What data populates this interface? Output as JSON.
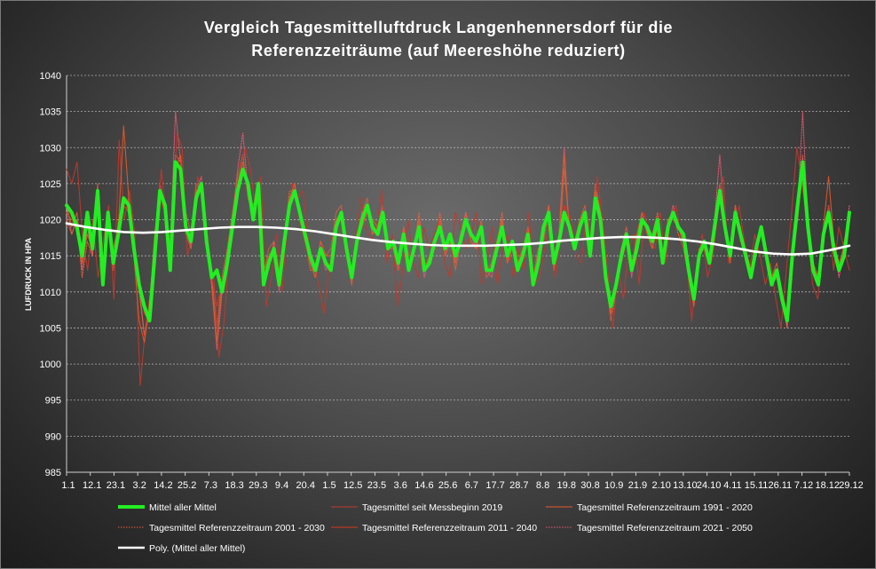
{
  "chart_data": {
    "type": "line",
    "title_lines": [
      "Vergleich Tagesmittelluftdruck Langenhennersdorf für die",
      "Referenzzeiträume (auf Meereshöhe reduziert)"
    ],
    "ylabel": "LUFDRUCK IN HPA",
    "xlabel": "",
    "ylim": [
      985,
      1040
    ],
    "y_ticks": [
      985,
      990,
      995,
      1000,
      1005,
      1010,
      1015,
      1020,
      1025,
      1030,
      1035,
      1040
    ],
    "x_tick_labels": [
      "1.1",
      "12.1",
      "23.1",
      "3.2",
      "14.2",
      "25.2",
      "7.3",
      "18.3",
      "29.3",
      "9.4",
      "20.4",
      "1.5",
      "12.5",
      "23.5",
      "3.6",
      "14.6",
      "25.6",
      "6.7",
      "17.7",
      "28.7",
      "8.8",
      "19.8",
      "30.8",
      "10.9",
      "21.9",
      "2.10",
      "13.10",
      "24.10",
      "4.11",
      "15.11",
      "26.11",
      "7.12",
      "18.12",
      "29.12"
    ],
    "grid": true,
    "legend_placement": "bottom",
    "series": [
      {
        "name": "Mittel aller Mittel",
        "color": "#22ee22",
        "style": "solid-thick",
        "values": [
          1022,
          1021,
          1019,
          1015,
          1021,
          1016,
          1024,
          1011,
          1021,
          1014,
          1018,
          1023,
          1022,
          1016,
          1011,
          1008,
          1006,
          1015,
          1024,
          1022,
          1013,
          1028,
          1027,
          1019,
          1017,
          1023,
          1025,
          1017,
          1012,
          1013,
          1010,
          1014,
          1019,
          1024,
          1027,
          1025,
          1020,
          1025,
          1011,
          1014,
          1016,
          1011,
          1017,
          1022,
          1024,
          1021,
          1018,
          1015,
          1013,
          1016,
          1014,
          1013,
          1019,
          1021,
          1016,
          1012,
          1017,
          1020,
          1022,
          1019,
          1018,
          1021,
          1016,
          1017,
          1014,
          1018,
          1013,
          1016,
          1019,
          1013,
          1014,
          1017,
          1019,
          1016,
          1018,
          1015,
          1017,
          1020,
          1018,
          1017,
          1019,
          1013,
          1013,
          1016,
          1019,
          1015,
          1017,
          1013,
          1015,
          1018,
          1011,
          1014,
          1019,
          1021,
          1014,
          1017,
          1021,
          1019,
          1016,
          1019,
          1021,
          1015,
          1023,
          1020,
          1012,
          1008,
          1011,
          1015,
          1018,
          1013,
          1016,
          1020,
          1019,
          1017,
          1020,
          1014,
          1019,
          1021,
          1019,
          1018,
          1013,
          1009,
          1015,
          1017,
          1014,
          1019,
          1024,
          1019,
          1015,
          1021,
          1018,
          1015,
          1012,
          1016,
          1019,
          1015,
          1011,
          1013,
          1009,
          1006,
          1015,
          1022,
          1028,
          1019,
          1013,
          1011,
          1018,
          1021,
          1016,
          1013,
          1015,
          1021
        ]
      },
      {
        "name": "Tagesmittel seit Messbeginn 2019",
        "color": "#c0392b",
        "style": "solid-thin",
        "values": [
          1027,
          1025,
          1028,
          1018,
          1013,
          1020,
          1012,
          1017,
          1022,
          1009,
          1031,
          1020,
          1024,
          1018,
          997,
          1005,
          1010,
          1016,
          1027,
          1020,
          1016,
          1032,
          1030,
          1015,
          1018,
          1026,
          1022,
          1015,
          1012,
          1001,
          1006,
          1016,
          1021,
          1027,
          1030,
          1027,
          1021,
          1026,
          1008,
          1012,
          1018,
          1010,
          1019,
          1025,
          1023,
          1024,
          1017,
          1014,
          1011,
          1007,
          1014,
          1016,
          1021,
          1016,
          1012,
          1017,
          1023,
          1019,
          1017,
          1019,
          1024,
          1014,
          1018,
          1008,
          1013,
          1020,
          1014,
          1012,
          1019,
          1016,
          1018,
          1020,
          1014,
          1012,
          1021,
          1019,
          1016,
          1018,
          1021,
          1011,
          1014,
          1019,
          1011,
          1016,
          1018,
          1012,
          1016,
          1013,
          1021,
          1011,
          1012,
          1016,
          1020,
          1012,
          1018,
          1022,
          1020,
          1015,
          1014,
          1021,
          1017,
          1026,
          1020,
          1013,
          1005,
          1013,
          1009,
          1016,
          1018,
          1011,
          1021,
          1017,
          1016,
          1021,
          1014,
          1020,
          1022,
          1017,
          1015,
          1006,
          1014,
          1018,
          1012,
          1015,
          1021,
          1026,
          1014,
          1018,
          1022,
          1017,
          1013,
          1018,
          1015,
          1011,
          1014,
          1009,
          1005,
          1013,
          1021,
          1030,
          1025,
          1019,
          1011,
          1009,
          1017,
          1022,
          1013,
          1019,
          1016,
          1013
        ]
      },
      {
        "name": "Tagesmittel Referenzzeitraum 1991 - 2020",
        "color": "#e35a2a",
        "style": "solid-thin",
        "values": [
          1022,
          1019,
          1021,
          1014,
          1018,
          1016,
          1024,
          1013,
          1019,
          1016,
          1019,
          1033,
          1023,
          1015,
          1006,
          1003,
          1008,
          1018,
          1024,
          1021,
          1015,
          1027,
          1029,
          1020,
          1016,
          1024,
          1024,
          1018,
          1011,
          1003,
          1011,
          1015,
          1020,
          1025,
          1028,
          1024,
          1022,
          1024,
          1013,
          1015,
          1016,
          1012,
          1018,
          1023,
          1025,
          1020,
          1017,
          1014,
          1012,
          1017,
          1015,
          1015,
          1020,
          1021,
          1016,
          1011,
          1018,
          1019,
          1021,
          1020,
          1019,
          1021,
          1017,
          1016,
          1013,
          1019,
          1015,
          1015,
          1020,
          1013,
          1015,
          1016,
          1020,
          1015,
          1017,
          1014,
          1018,
          1020,
          1017,
          1016,
          1020,
          1013,
          1014,
          1017,
          1020,
          1014,
          1016,
          1014,
          1016,
          1019,
          1012,
          1015,
          1018,
          1022,
          1013,
          1018,
          1029,
          1018,
          1017,
          1020,
          1022,
          1016,
          1024,
          1019,
          1011,
          1007,
          1012,
          1014,
          1017,
          1013,
          1018,
          1021,
          1018,
          1016,
          1019,
          1015,
          1020,
          1020,
          1019,
          1017,
          1012,
          1008,
          1016,
          1016,
          1015,
          1020,
          1023,
          1020,
          1014,
          1022,
          1017,
          1016,
          1013,
          1017,
          1018,
          1016,
          1012,
          1014,
          1010,
          1007,
          1014,
          1020,
          1027,
          1020,
          1014,
          1012,
          1019,
          1026,
          1017,
          1014,
          1016,
          1020
        ]
      },
      {
        "name": "Tagesmittel Referenzzeitraum 2001 - 2030",
        "color": "#e8603c",
        "style": "dotted",
        "values": [
          1020,
          1018,
          1020,
          1012,
          1017,
          1015,
          1025,
          1014,
          1020,
          1013,
          1020,
          1022,
          1021,
          1017,
          1010,
          1004,
          1009,
          1016,
          1025,
          1022,
          1017,
          1029,
          1028,
          1021,
          1018,
          1025,
          1024,
          1019,
          1012,
          1005,
          1012,
          1016,
          1021,
          1026,
          1029,
          1023,
          1021,
          1023,
          1012,
          1016,
          1017,
          1013,
          1017,
          1024,
          1024,
          1021,
          1018,
          1013,
          1013,
          1017,
          1015,
          1016,
          1021,
          1022,
          1016,
          1012,
          1017,
          1021,
          1023,
          1018,
          1019,
          1022,
          1016,
          1017,
          1015,
          1018,
          1014,
          1016,
          1021,
          1014,
          1014,
          1016,
          1021,
          1016,
          1018,
          1013,
          1017,
          1021,
          1017,
          1016,
          1019,
          1012,
          1013,
          1016,
          1021,
          1014,
          1017,
          1015,
          1015,
          1018,
          1012,
          1016,
          1017,
          1021,
          1015,
          1016,
          1027,
          1019,
          1016,
          1019,
          1021,
          1016,
          1025,
          1021,
          1012,
          1006,
          1010,
          1016,
          1019,
          1014,
          1017,
          1020,
          1019,
          1018,
          1021,
          1014,
          1020,
          1021,
          1018,
          1016,
          1012,
          1010,
          1015,
          1017,
          1014,
          1019,
          1025,
          1018,
          1016,
          1021,
          1019,
          1015,
          1013,
          1016,
          1018,
          1015,
          1011,
          1012,
          1009,
          1005,
          1016,
          1021,
          1029,
          1018,
          1014,
          1012,
          1018,
          1022,
          1016,
          1013,
          1017,
          1021
        ]
      },
      {
        "name": "Tagesmittel Referenzzeitraum 2011 - 2040",
        "color": "#d8391e",
        "style": "solid-thin",
        "values": [
          1021,
          1020,
          1019,
          1016,
          1020,
          1016,
          1023,
          1012,
          1020,
          1015,
          1018,
          1022,
          1021,
          1016,
          1012,
          1007,
          1006,
          1015,
          1023,
          1021,
          1014,
          1028,
          1028,
          1019,
          1017,
          1023,
          1025,
          1017,
          1012,
          1008,
          1011,
          1014,
          1019,
          1025,
          1027,
          1025,
          1021,
          1025,
          1012,
          1014,
          1016,
          1011,
          1017,
          1022,
          1024,
          1021,
          1018,
          1015,
          1013,
          1016,
          1014,
          1013,
          1019,
          1021,
          1016,
          1012,
          1017,
          1020,
          1022,
          1019,
          1018,
          1021,
          1016,
          1017,
          1014,
          1018,
          1013,
          1016,
          1019,
          1013,
          1014,
          1017,
          1019,
          1016,
          1018,
          1015,
          1017,
          1020,
          1018,
          1017,
          1019,
          1013,
          1013,
          1016,
          1019,
          1015,
          1017,
          1013,
          1015,
          1018,
          1011,
          1014,
          1019,
          1021,
          1014,
          1017,
          1022,
          1019,
          1016,
          1019,
          1021,
          1015,
          1023,
          1020,
          1012,
          1008,
          1011,
          1015,
          1018,
          1013,
          1016,
          1020,
          1019,
          1017,
          1020,
          1014,
          1019,
          1021,
          1019,
          1018,
          1013,
          1009,
          1015,
          1017,
          1014,
          1019,
          1024,
          1019,
          1015,
          1021,
          1018,
          1015,
          1012,
          1016,
          1019,
          1015,
          1011,
          1013,
          1009,
          1006,
          1015,
          1022,
          1028,
          1019,
          1013,
          1011,
          1018,
          1021,
          1016,
          1013,
          1015,
          1021
        ]
      },
      {
        "name": "Tagesmittel Referenzzeitraum 2021 - 2050",
        "color": "#ea5a72",
        "style": "dotted",
        "values": [
          1022,
          1018,
          1020,
          1013,
          1019,
          1015,
          1024,
          1011,
          1021,
          1014,
          1019,
          1022,
          1023,
          1016,
          1011,
          1004,
          1007,
          1016,
          1024,
          1021,
          1016,
          1035,
          1028,
          1018,
          1016,
          1024,
          1026,
          1017,
          1011,
          1002,
          1010,
          1015,
          1020,
          1027,
          1032,
          1024,
          1020,
          1025,
          1013,
          1013,
          1017,
          1010,
          1018,
          1023,
          1025,
          1020,
          1018,
          1014,
          1012,
          1016,
          1013,
          1014,
          1019,
          1021,
          1017,
          1011,
          1017,
          1021,
          1022,
          1018,
          1019,
          1022,
          1016,
          1016,
          1013,
          1019,
          1014,
          1016,
          1018,
          1012,
          1015,
          1017,
          1019,
          1015,
          1017,
          1014,
          1018,
          1021,
          1018,
          1016,
          1019,
          1013,
          1012,
          1016,
          1020,
          1015,
          1016,
          1014,
          1015,
          1019,
          1011,
          1014,
          1018,
          1022,
          1015,
          1018,
          1030,
          1018,
          1016,
          1020,
          1020,
          1015,
          1024,
          1021,
          1011,
          1007,
          1012,
          1016,
          1018,
          1012,
          1017,
          1021,
          1018,
          1016,
          1020,
          1015,
          1019,
          1022,
          1019,
          1017,
          1013,
          1008,
          1015,
          1016,
          1015,
          1020,
          1029,
          1019,
          1015,
          1022,
          1018,
          1016,
          1012,
          1016,
          1019,
          1016,
          1012,
          1013,
          1009,
          1005,
          1016,
          1021,
          1035,
          1019,
          1013,
          1012,
          1017,
          1022,
          1017,
          1012,
          1016,
          1022
        ]
      },
      {
        "name": "Poly. (Mittel aller Mittel)",
        "color": "#ffffff",
        "style": "solid-medium",
        "values": [
          1019.5,
          1019.0,
          1018.6,
          1018.3,
          1018.2,
          1018.3,
          1018.5,
          1018.7,
          1018.9,
          1019.0,
          1019.0,
          1018.9,
          1018.7,
          1018.4,
          1018.0,
          1017.6,
          1017.2,
          1016.9,
          1016.7,
          1016.5,
          1016.4,
          1016.4,
          1016.4,
          1016.5,
          1016.6,
          1016.8,
          1017.1,
          1017.3,
          1017.5,
          1017.6,
          1017.6,
          1017.5,
          1017.3,
          1017.0,
          1016.6,
          1016.1,
          1015.6,
          1015.3,
          1015.2,
          1015.3,
          1015.8,
          1016.4
        ]
      }
    ]
  }
}
